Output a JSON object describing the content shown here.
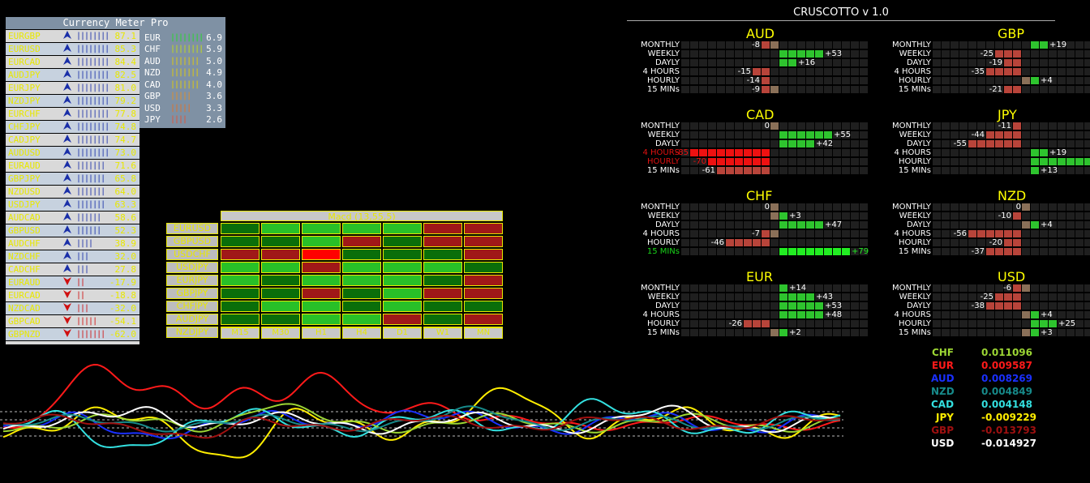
{
  "currency_meter": {
    "title": "Currency Meter Pro",
    "pairs": [
      {
        "name": "EURGBP",
        "symbol": "up",
        "bars": 10,
        "value": "87.1",
        "color": "#d9d9d9"
      },
      {
        "name": "EURUSD",
        "symbol": "up",
        "bars": 9,
        "value": "85.3",
        "color": "#c7d2df"
      },
      {
        "name": "EURCAD",
        "symbol": "up",
        "bars": 9,
        "value": "84.4",
        "color": "#d9d9d9"
      },
      {
        "name": "AUDJPY",
        "symbol": "up",
        "bars": 9,
        "value": "82.5",
        "color": "#c7d2df"
      },
      {
        "name": "EURJPY",
        "symbol": "up",
        "bars": 9,
        "value": "81.0",
        "color": "#d9d9d9"
      },
      {
        "name": "NZDJPY",
        "symbol": "up",
        "bars": 8,
        "value": "79.2",
        "color": "#c7d2df"
      },
      {
        "name": "EURCHF",
        "symbol": "up",
        "bars": 8,
        "value": "77.8",
        "color": "#d9d9d9"
      },
      {
        "name": "CHFJPY",
        "symbol": "up",
        "bars": 8,
        "value": "74.8",
        "color": "#c7d2df"
      },
      {
        "name": "CADJPY",
        "symbol": "up",
        "bars": 8,
        "value": "74.7",
        "color": "#d9d9d9"
      },
      {
        "name": "AUDUSD",
        "symbol": "up",
        "bars": 8,
        "value": "73.0",
        "color": "#c7d2df"
      },
      {
        "name": "EURAUD",
        "symbol": "up",
        "bars": 7,
        "value": "71.6",
        "color": "#d9d9d9"
      },
      {
        "name": "GBPJPY",
        "symbol": "up",
        "bars": 7,
        "value": "65.8",
        "color": "#c7d2df"
      },
      {
        "name": "NZDUSD",
        "symbol": "up",
        "bars": 7,
        "value": "64.0",
        "color": "#d9d9d9"
      },
      {
        "name": "USDJPY",
        "symbol": "up",
        "bars": 7,
        "value": "63.3",
        "color": "#c7d2df"
      },
      {
        "name": "AUDCAD",
        "symbol": "up",
        "bars": 6,
        "value": "58.6",
        "color": "#d9d9d9"
      },
      {
        "name": "GBPUSD",
        "symbol": "up",
        "bars": 6,
        "value": "52.3",
        "color": "#c7d2df"
      },
      {
        "name": "AUDCHF",
        "symbol": "up",
        "bars": 4,
        "value": "38.9",
        "color": "#d9d9d9"
      },
      {
        "name": "NZDCHF",
        "symbol": "up",
        "bars": 3,
        "value": "32.0",
        "color": "#c7d2df"
      },
      {
        "name": "CADCHF",
        "symbol": "up",
        "bars": 3,
        "value": "27.8",
        "color": "#d9d9d9"
      },
      {
        "name": "EURAUD",
        "symbol": "down",
        "bars": 2,
        "value": "-17.9",
        "color": "#c7d2df"
      },
      {
        "name": "EURCAD",
        "symbol": "down",
        "bars": 2,
        "value": "-18.8",
        "color": "#d9d9d9"
      },
      {
        "name": "NZDCAD",
        "symbol": "down",
        "bars": 3,
        "value": "-32.0",
        "color": "#c7d2df"
      },
      {
        "name": "GBPCAD",
        "symbol": "down",
        "bars": 5,
        "value": "-54.1",
        "color": "#d9d9d9"
      },
      {
        "name": "GBPNZD",
        "symbol": "down",
        "bars": 7,
        "value": "-62.0",
        "color": "#c7d2df"
      }
    ],
    "strength": [
      {
        "currency": "EUR",
        "bars": 10,
        "value": "6.9",
        "color": "#22dd22"
      },
      {
        "currency": "CHF",
        "bars": 10,
        "value": "5.9",
        "color": "#c8e010"
      },
      {
        "currency": "AUD",
        "bars": 7,
        "value": "5.0",
        "color": "#e8d000"
      },
      {
        "currency": "NZD",
        "bars": 7,
        "value": "4.9",
        "color": "#e8d000"
      },
      {
        "currency": "CAD",
        "bars": 7,
        "value": "4.0",
        "color": "#e8d000"
      },
      {
        "currency": "GBP",
        "bars": 5,
        "value": "3.6",
        "color": "#e89020"
      },
      {
        "currency": "USD",
        "bars": 5,
        "value": "3.3",
        "color": "#e87020"
      },
      {
        "currency": "JPY",
        "bars": 4,
        "value": "2.6",
        "color": "#e85030"
      }
    ]
  },
  "macd": {
    "title": "Macd (13,55,5)",
    "pairs": [
      "EURUSD",
      "GBPUSD",
      "USDCHF",
      "USDJPY",
      "EURJPY",
      "GBPJPY",
      "CHFJPY",
      "AUDJPY",
      "NZDJPY"
    ],
    "timeframes": [
      "M15",
      "M30",
      "H1",
      "H4",
      "D1",
      "W1",
      "MN"
    ],
    "colors": {
      "g": "#28c028",
      "G": "#0a6e0a",
      "r": "#a01818",
      "R": "#ff0000"
    },
    "grid": [
      [
        "G",
        "g",
        "g",
        "g",
        "g",
        "r",
        "r"
      ],
      [
        "G",
        "G",
        "g",
        "r",
        "G",
        "r",
        "r"
      ],
      [
        "r",
        "r",
        "R",
        "G",
        "G",
        "G",
        "r"
      ],
      [
        "g",
        "g",
        "r",
        "g",
        "g",
        "g",
        "G"
      ],
      [
        "g",
        "G",
        "g",
        "g",
        "g",
        "G",
        "r"
      ],
      [
        "G",
        "G",
        "r",
        "G",
        "g",
        "r",
        "r"
      ],
      [
        "G",
        "g",
        "g",
        "G",
        "g",
        "G",
        "G"
      ],
      [
        "G",
        "G",
        "g",
        "g",
        "r",
        "G",
        "r"
      ],
      [
        "G",
        "g",
        "g",
        "g",
        "r",
        "G",
        "R"
      ]
    ]
  },
  "cruscotto": {
    "title": "CRUSCOTTO v 1.0",
    "rows": [
      "MONTHLY",
      "WEEKLY",
      "DAYLY",
      "4 HOURS",
      "HOURLY",
      "15 MINs"
    ],
    "currencies": [
      {
        "name": "AUD",
        "values": [
          -8,
          53,
          16,
          -15,
          -14,
          -9
        ],
        "highlight": []
      },
      {
        "name": "GBP",
        "values": [
          19,
          -25,
          -19,
          -35,
          4,
          -21
        ],
        "highlight": []
      },
      {
        "name": "CAD",
        "values": [
          0,
          55,
          42,
          -85,
          -70,
          -61
        ],
        "highlight": [
          3,
          4
        ]
      },
      {
        "name": "JPY",
        "values": [
          -11,
          -44,
          -55,
          19,
          100,
          13
        ],
        "highlight": []
      },
      {
        "name": "CHF",
        "values": [
          0,
          3,
          47,
          -7,
          -46,
          79
        ],
        "highlight": [
          5
        ]
      },
      {
        "name": "NZD",
        "values": [
          0,
          -10,
          4,
          -56,
          -20,
          -37
        ],
        "highlight": []
      },
      {
        "name": "EUR",
        "values": [
          14,
          43,
          53,
          48,
          -26,
          2
        ],
        "highlight": []
      },
      {
        "name": "USD",
        "values": [
          -6,
          -25,
          -38,
          4,
          25,
          3
        ],
        "highlight": []
      }
    ]
  },
  "legend": [
    {
      "currency": "CHF",
      "value": "0.011096",
      "name_color": "#9cd634",
      "value_color": "#9cd634"
    },
    {
      "currency": "EUR",
      "value": "0.009587",
      "name_color": "#ff1a1a",
      "value_color": "#ff1a1a"
    },
    {
      "currency": "AUD",
      "value": "0.008269",
      "name_color": "#1a30ff",
      "value_color": "#1a30ff"
    },
    {
      "currency": "NZD",
      "value": "0.004849",
      "name_color": "#178a8a",
      "value_color": "#178a8a"
    },
    {
      "currency": "CAD",
      "value": "0.004148",
      "name_color": "#33e0e0",
      "value_color": "#33e0e0"
    },
    {
      "currency": "JPY",
      "value": "-0.009229",
      "name_color": "#ffee00",
      "value_color": "#ffee00"
    },
    {
      "currency": "GBP",
      "value": "-0.013793",
      "name_color": "#a01010",
      "value_color": "#a01010"
    },
    {
      "currency": "USD",
      "value": "-0.014927",
      "name_color": "#ffffff",
      "value_color": "#ffffff"
    }
  ]
}
